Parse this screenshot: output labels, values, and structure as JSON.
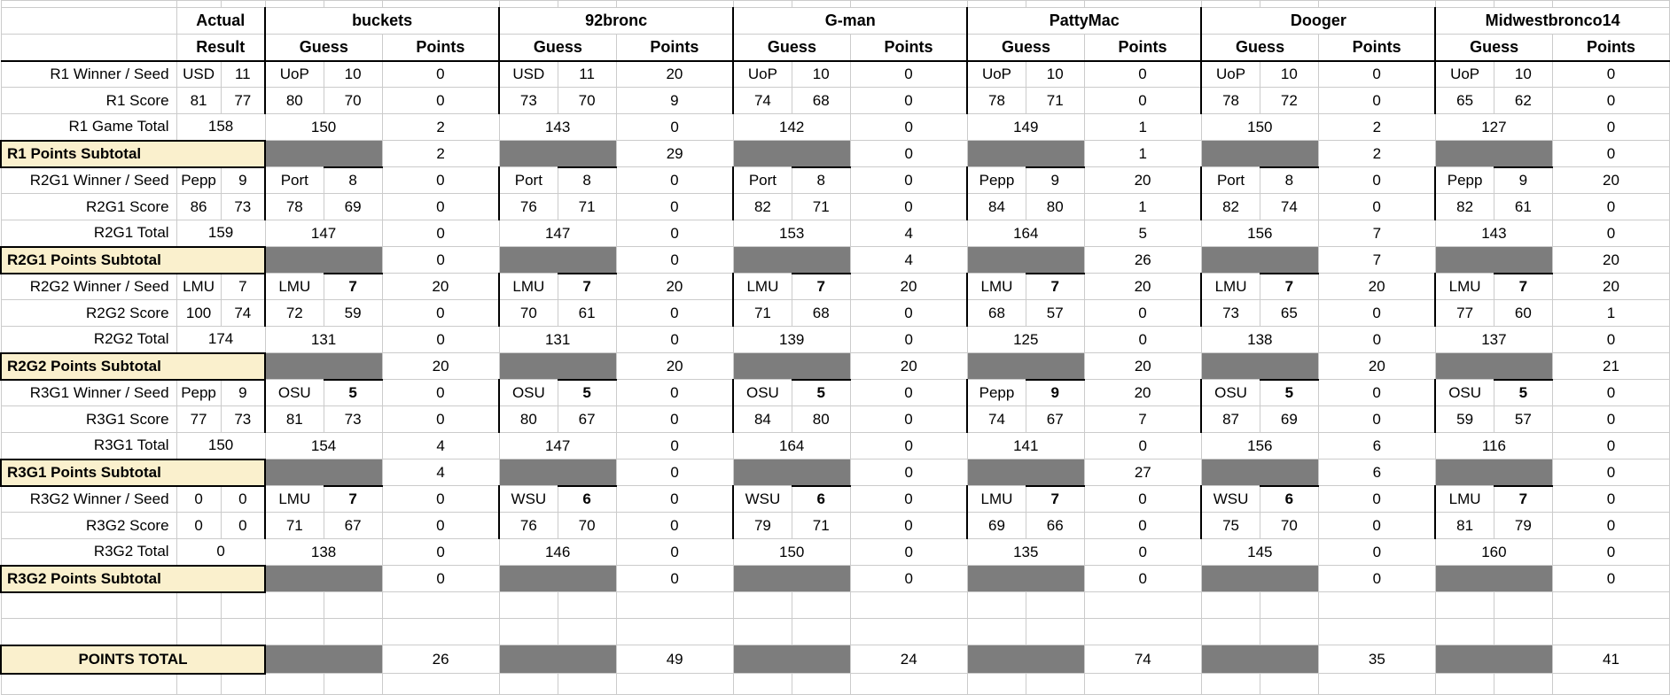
{
  "colors": {
    "subtotal_row_bg": "#FAF0CD",
    "blocked_cell_bg": "#7D7D7D",
    "gridline": "#CBCBCB",
    "accent_border": "#000000"
  },
  "header": {
    "actual_label": "Actual",
    "result_label": "Result",
    "guess_label": "Guess",
    "points_label": "Points"
  },
  "players": [
    "buckets",
    "92bronc",
    "G-man",
    "PattyMac",
    "Dooger",
    "Midwestbronco14"
  ],
  "rows": [
    {
      "type": "winner",
      "label": "R1 Winner / Seed",
      "seed_bold": false,
      "actual": [
        "USD",
        "11"
      ],
      "players": [
        [
          "UoP",
          "10",
          "0"
        ],
        [
          "USD",
          "11",
          "20"
        ],
        [
          "UoP",
          "10",
          "0"
        ],
        [
          "UoP",
          "10",
          "0"
        ],
        [
          "UoP",
          "10",
          "0"
        ],
        [
          "UoP",
          "10",
          "0"
        ]
      ]
    },
    {
      "type": "score",
      "label": "R1 Score",
      "actual": [
        "81",
        "77"
      ],
      "players": [
        [
          "80",
          "70",
          "0"
        ],
        [
          "73",
          "70",
          "9"
        ],
        [
          "74",
          "68",
          "0"
        ],
        [
          "78",
          "71",
          "0"
        ],
        [
          "78",
          "72",
          "0"
        ],
        [
          "65",
          "62",
          "0"
        ]
      ]
    },
    {
      "type": "total",
      "label": "R1 Game Total",
      "actual": "158",
      "players": [
        [
          "150",
          "2"
        ],
        [
          "143",
          "0"
        ],
        [
          "142",
          "0"
        ],
        [
          "149",
          "1"
        ],
        [
          "150",
          "2"
        ],
        [
          "127",
          "0"
        ]
      ]
    },
    {
      "type": "subtotal",
      "label": "R1 Points Subtotal",
      "points": [
        "2",
        "29",
        "0",
        "1",
        "2",
        "0"
      ]
    },
    {
      "type": "winner",
      "label": "R2G1 Winner / Seed",
      "seed_bold": false,
      "actual": [
        "Pepp",
        "9"
      ],
      "players": [
        [
          "Port",
          "8",
          "0"
        ],
        [
          "Port",
          "8",
          "0"
        ],
        [
          "Port",
          "8",
          "0"
        ],
        [
          "Pepp",
          "9",
          "20"
        ],
        [
          "Port",
          "8",
          "0"
        ],
        [
          "Pepp",
          "9",
          "20"
        ]
      ]
    },
    {
      "type": "score",
      "label": "R2G1 Score",
      "actual": [
        "86",
        "73"
      ],
      "players": [
        [
          "78",
          "69",
          "0"
        ],
        [
          "76",
          "71",
          "0"
        ],
        [
          "82",
          "71",
          "0"
        ],
        [
          "84",
          "80",
          "1"
        ],
        [
          "82",
          "74",
          "0"
        ],
        [
          "82",
          "61",
          "0"
        ]
      ]
    },
    {
      "type": "total",
      "label": "R2G1 Total",
      "actual": "159",
      "players": [
        [
          "147",
          "0"
        ],
        [
          "147",
          "0"
        ],
        [
          "153",
          "4"
        ],
        [
          "164",
          "5"
        ],
        [
          "156",
          "7"
        ],
        [
          "143",
          "0"
        ]
      ]
    },
    {
      "type": "subtotal",
      "label": "R2G1 Points Subtotal",
      "points": [
        "0",
        "0",
        "4",
        "26",
        "7",
        "20"
      ]
    },
    {
      "type": "winner",
      "label": "R2G2 Winner / Seed",
      "seed_bold": true,
      "actual": [
        "LMU",
        "7"
      ],
      "players": [
        [
          "LMU",
          "7",
          "20"
        ],
        [
          "LMU",
          "7",
          "20"
        ],
        [
          "LMU",
          "7",
          "20"
        ],
        [
          "LMU",
          "7",
          "20"
        ],
        [
          "LMU",
          "7",
          "20"
        ],
        [
          "LMU",
          "7",
          "20"
        ]
      ]
    },
    {
      "type": "score",
      "label": "R2G2 Score",
      "actual": [
        "100",
        "74"
      ],
      "players": [
        [
          "72",
          "59",
          "0"
        ],
        [
          "70",
          "61",
          "0"
        ],
        [
          "71",
          "68",
          "0"
        ],
        [
          "68",
          "57",
          "0"
        ],
        [
          "73",
          "65",
          "0"
        ],
        [
          "77",
          "60",
          "1"
        ]
      ]
    },
    {
      "type": "total",
      "label": "R2G2 Total",
      "actual": "174",
      "players": [
        [
          "131",
          "0"
        ],
        [
          "131",
          "0"
        ],
        [
          "139",
          "0"
        ],
        [
          "125",
          "0"
        ],
        [
          "138",
          "0"
        ],
        [
          "137",
          "0"
        ]
      ]
    },
    {
      "type": "subtotal",
      "label": "R2G2 Points Subtotal",
      "points": [
        "20",
        "20",
        "20",
        "20",
        "20",
        "21"
      ]
    },
    {
      "type": "winner",
      "label": "R3G1 Winner / Seed",
      "seed_bold": true,
      "actual": [
        "Pepp",
        "9"
      ],
      "players": [
        [
          "OSU",
          "5",
          "0"
        ],
        [
          "OSU",
          "5",
          "0"
        ],
        [
          "OSU",
          "5",
          "0"
        ],
        [
          "Pepp",
          "9",
          "20"
        ],
        [
          "OSU",
          "5",
          "0"
        ],
        [
          "OSU",
          "5",
          "0"
        ]
      ]
    },
    {
      "type": "score",
      "label": "R3G1 Score",
      "actual": [
        "77",
        "73"
      ],
      "players": [
        [
          "81",
          "73",
          "0"
        ],
        [
          "80",
          "67",
          "0"
        ],
        [
          "84",
          "80",
          "0"
        ],
        [
          "74",
          "67",
          "7"
        ],
        [
          "87",
          "69",
          "0"
        ],
        [
          "59",
          "57",
          "0"
        ]
      ]
    },
    {
      "type": "total",
      "label": "R3G1 Total",
      "actual": "150",
      "players": [
        [
          "154",
          "4"
        ],
        [
          "147",
          "0"
        ],
        [
          "164",
          "0"
        ],
        [
          "141",
          "0"
        ],
        [
          "156",
          "6"
        ],
        [
          "116",
          "0"
        ]
      ]
    },
    {
      "type": "subtotal",
      "label": "R3G1 Points Subtotal",
      "points": [
        "4",
        "0",
        "0",
        "27",
        "6",
        "0"
      ]
    },
    {
      "type": "winner",
      "label": "R3G2 Winner / Seed",
      "seed_bold": true,
      "actual": [
        "0",
        "0"
      ],
      "players": [
        [
          "LMU",
          "7",
          "0"
        ],
        [
          "WSU",
          "6",
          "0"
        ],
        [
          "WSU",
          "6",
          "0"
        ],
        [
          "LMU",
          "7",
          "0"
        ],
        [
          "WSU",
          "6",
          "0"
        ],
        [
          "LMU",
          "7",
          "0"
        ]
      ]
    },
    {
      "type": "score",
      "label": "R3G2 Score",
      "actual": [
        "0",
        "0"
      ],
      "players": [
        [
          "71",
          "67",
          "0"
        ],
        [
          "76",
          "70",
          "0"
        ],
        [
          "79",
          "71",
          "0"
        ],
        [
          "69",
          "66",
          "0"
        ],
        [
          "75",
          "70",
          "0"
        ],
        [
          "81",
          "79",
          "0"
        ]
      ]
    },
    {
      "type": "total",
      "label": "R3G2 Total",
      "actual": "0",
      "players": [
        [
          "138",
          "0"
        ],
        [
          "146",
          "0"
        ],
        [
          "150",
          "0"
        ],
        [
          "135",
          "0"
        ],
        [
          "145",
          "0"
        ],
        [
          "160",
          "0"
        ]
      ]
    },
    {
      "type": "subtotal",
      "label": "R3G2 Points Subtotal",
      "points": [
        "0",
        "0",
        "0",
        "0",
        "0",
        "0"
      ]
    },
    {
      "type": "empty",
      "label": ""
    },
    {
      "type": "empty",
      "label": ""
    },
    {
      "type": "grandtotal",
      "label": "POINTS TOTAL",
      "points": [
        "26",
        "49",
        "24",
        "74",
        "35",
        "41"
      ]
    }
  ]
}
